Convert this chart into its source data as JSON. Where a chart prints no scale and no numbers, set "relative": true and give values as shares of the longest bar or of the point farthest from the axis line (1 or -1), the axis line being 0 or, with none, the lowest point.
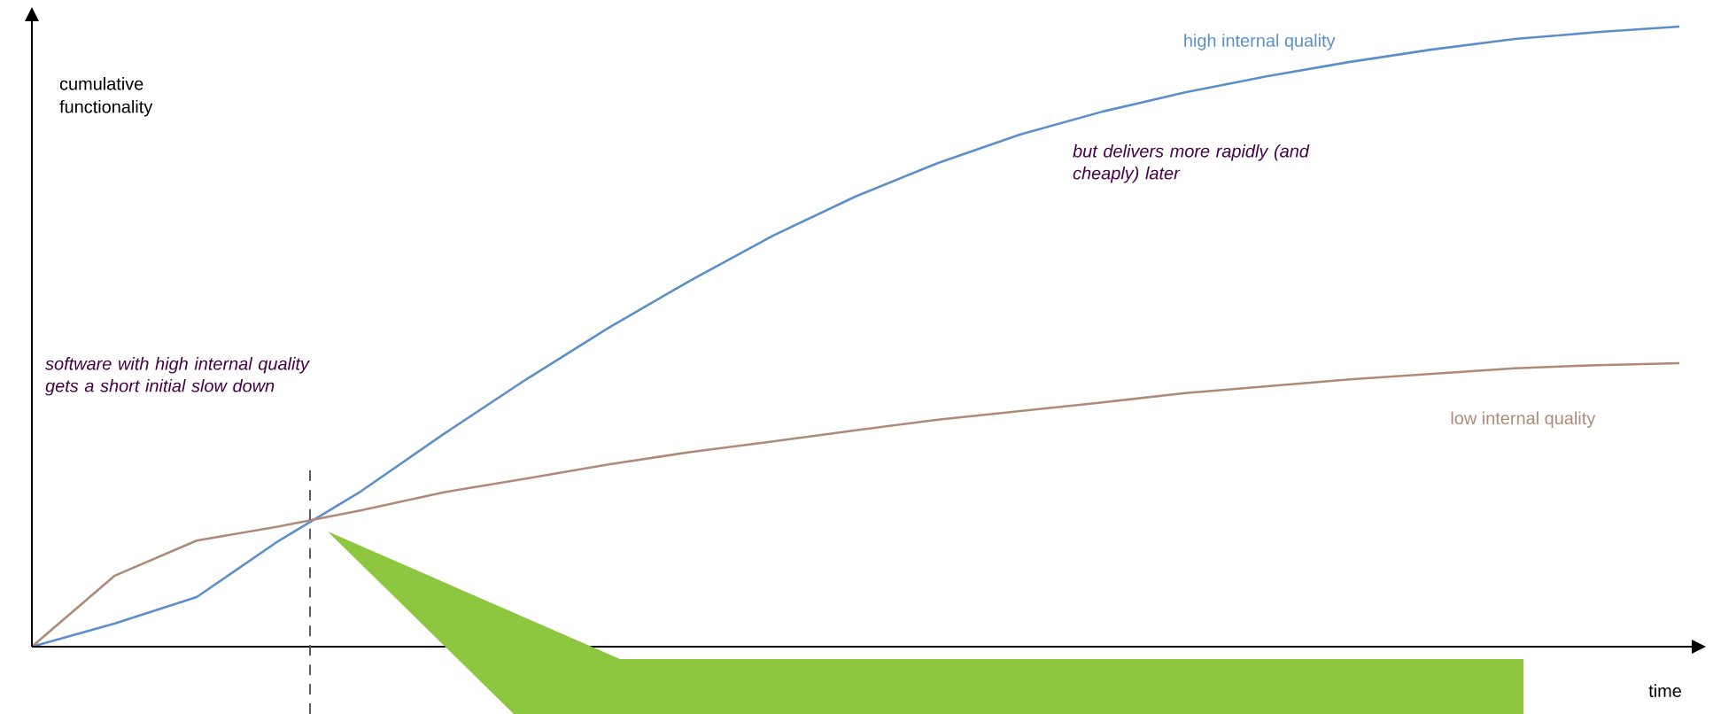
{
  "chart_data": {
    "type": "line",
    "relative": true,
    "xlabel": "time",
    "ylabel": "cumulative functionality",
    "categories": [
      null,
      null,
      null,
      null,
      null,
      null,
      null,
      null,
      null,
      null,
      null,
      null,
      null,
      null,
      null,
      null,
      null,
      null,
      null,
      null,
      null
    ],
    "series": [
      {
        "name": "high internal quality",
        "color": "#5b8fc9",
        "values": [
          0,
          0.037,
          0.08,
          0.171,
          0.251,
          0.343,
          0.431,
          0.514,
          0.591,
          0.663,
          0.726,
          0.78,
          0.826,
          0.863,
          0.894,
          0.92,
          0.943,
          0.963,
          0.98,
          0.991,
          1.0
        ]
      },
      {
        "name": "low internal quality",
        "color": "#b08a78",
        "values": [
          0,
          0.114,
          0.171,
          0.194,
          0.22,
          0.249,
          0.271,
          0.294,
          0.314,
          0.331,
          0.349,
          0.366,
          0.38,
          0.394,
          0.409,
          0.42,
          0.431,
          0.44,
          0.449,
          0.454,
          0.457
        ]
      }
    ],
    "annotations": [
      "software with high internal quality gets a short initial slow down",
      "but delivers more rapidly (and cheaply) later"
    ]
  }
}
